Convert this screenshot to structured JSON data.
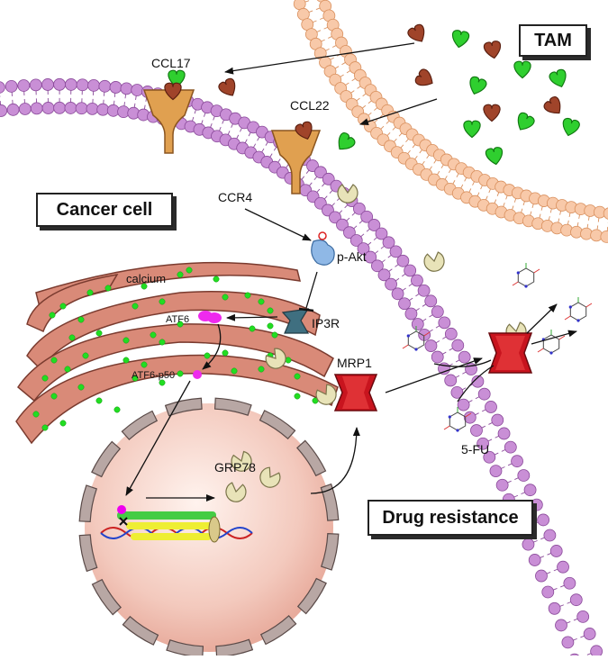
{
  "boxes": {
    "tam": "TAM",
    "cancer_cell": "Cancer cell",
    "drug_resistance": "Drug resistance"
  },
  "labels": {
    "ccl17": "CCL17",
    "ccl22": "CCL22",
    "ccr4": "CCR4",
    "p_akt": "p-Akt",
    "calcium": "calcium",
    "atf6": "ATF6",
    "ip3r": "IP3R",
    "atf6_p50": "ATF6-p50",
    "mrp1": "MRP1",
    "grp78": "GRP78",
    "five_fu": "5-FU"
  },
  "colors": {
    "cancer_membrane": "#c98fd6",
    "tam_membrane": "#f8c9a9",
    "er": "#d98a78",
    "calcium": "#22dd22",
    "ccl17": "#2fcf2f",
    "ccl22": "#a0442a",
    "receptor": "#e0a050",
    "mrp1": "#c8141e",
    "nucleus": "#f3c9bd",
    "grp78": "#e8e3b8",
    "atf6": "#ee2aee",
    "ip3r": "#3f6f80",
    "p_akt": "#8fb8e6"
  }
}
